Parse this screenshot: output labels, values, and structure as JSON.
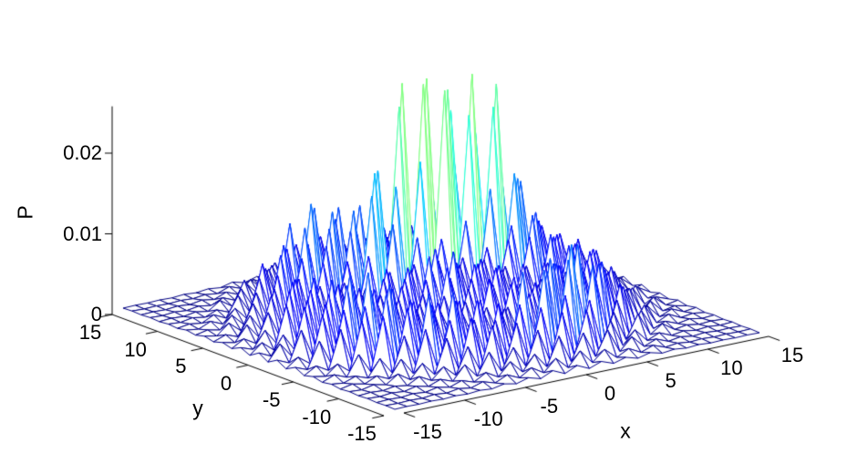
{
  "figure": {
    "background": "#ffffff",
    "axis_color": "#000000",
    "text_color": "#000000"
  },
  "chart_data": {
    "type": "mesh3d",
    "title": "",
    "xlabel": "x",
    "ylabel": "y",
    "zlabel": "P",
    "xlim": [
      -15,
      15
    ],
    "ylim": [
      -15,
      15
    ],
    "zlim": [
      0,
      0.0258
    ],
    "grid_step": 1,
    "x_ticks": [
      -15,
      -10,
      -5,
      0,
      5,
      10,
      15
    ],
    "x_tick_labels": [
      "-15",
      "-10",
      "-5",
      "0",
      "5",
      "10",
      "15"
    ],
    "y_ticks": [
      15,
      10,
      5,
      0,
      -5,
      -10,
      -15
    ],
    "y_tick_labels": [
      "15",
      "10",
      "5",
      "0",
      "-5",
      "-10",
      "-15"
    ],
    "z_ticks": [
      0,
      0.01,
      0.02
    ],
    "z_tick_labels": [
      "0",
      "0.01",
      "0.02"
    ],
    "legend": null,
    "grid": false,
    "colormap": "jet",
    "wireframe_base_color": "#000080",
    "peak_edge_colors_observed": [
      "#000080",
      "#00c8ff",
      "#9aff60",
      "#8b0000"
    ],
    "surface_model": {
      "description": "Probability P over a 31x31 lattice; nonzero only on checkerboard sites (x+y odd). Tall spike cluster near (4,6) reaching z~0.026, ring of secondary peaks at radius~10 (z~0.007-0.011), low central field, flat floor at corners.",
      "parity_nonzero": "odd",
      "cap": 0.0258,
      "components": [
        {
          "kind": "cluster",
          "amp": 0.0265,
          "cx": 4,
          "px": 1400,
          "cy": 6,
          "sy": 2.5
        },
        {
          "kind": "ring",
          "amp": 0.0095,
          "r0": 10,
          "sr": 9,
          "ang_base": 0.55,
          "ang_amp": 0.45,
          "ang_freq": 2,
          "ang_phase": -0.8
        },
        {
          "kind": "radial",
          "amp": 0.005,
          "s": 45
        },
        {
          "kind": "radial",
          "amp": 0.0022,
          "s": 110
        }
      ],
      "noise": {
        "base": 0.7,
        "amp": 0.5,
        "fx": 12.9898,
        "fy": 78.233,
        "scale": 43758.5453
      }
    }
  }
}
